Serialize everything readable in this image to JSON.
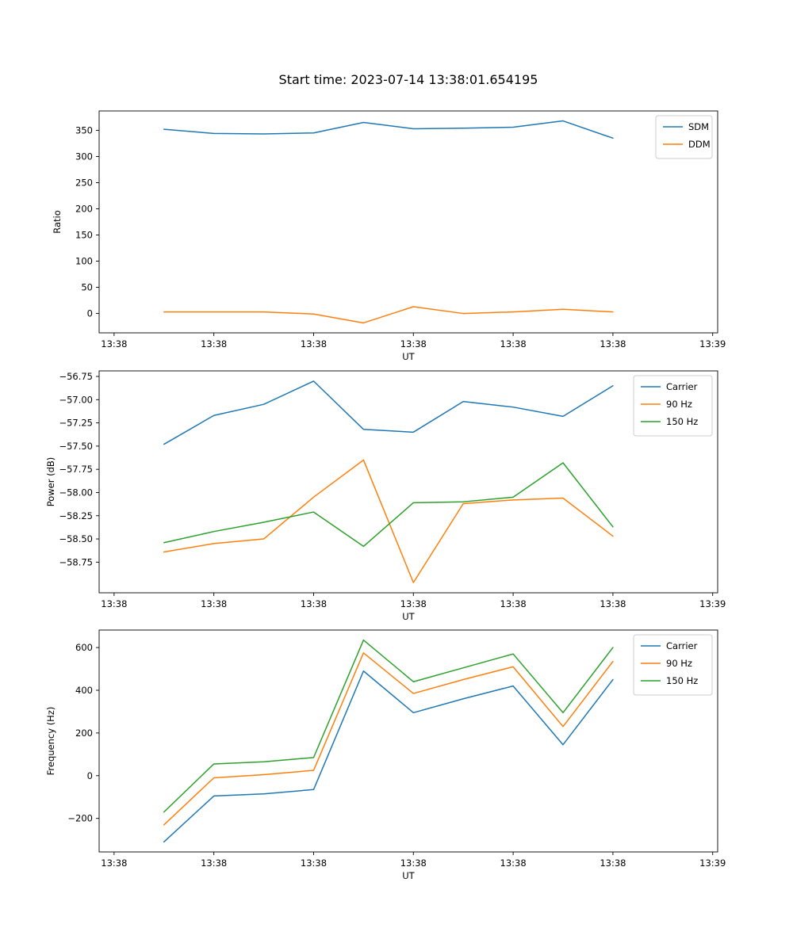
{
  "chart_data": [
    {
      "type": "line",
      "title": "Start time: 2023-07-14 13:38:01.654195",
      "xlabel": "UT",
      "ylabel": "Ratio",
      "xlim": [
        -1.5,
        60.5
      ],
      "ylim": [
        -37,
        387
      ],
      "grid": false,
      "legend_position": "upper right",
      "x": [
        5,
        10,
        15,
        20,
        25,
        30,
        35,
        40,
        45,
        50
      ],
      "x_ticks": [
        {
          "v": 0,
          "label": "13:38"
        },
        {
          "v": 10,
          "label": "13:38"
        },
        {
          "v": 20,
          "label": "13:38"
        },
        {
          "v": 30,
          "label": "13:38"
        },
        {
          "v": 40,
          "label": "13:38"
        },
        {
          "v": 50,
          "label": "13:38"
        },
        {
          "v": 60,
          "label": "13:39"
        }
      ],
      "y_ticks": [
        {
          "v": 350,
          "label": "350"
        },
        {
          "v": 300,
          "label": "300"
        },
        {
          "v": 250,
          "label": "250"
        },
        {
          "v": 200,
          "label": "200"
        },
        {
          "v": 150,
          "label": "150"
        },
        {
          "v": 100,
          "label": "100"
        },
        {
          "v": 50,
          "label": "50"
        },
        {
          "v": 0,
          "label": "0"
        }
      ],
      "series": [
        {
          "name": "SDM",
          "color": "#1f77b4",
          "values": [
            352,
            344,
            343,
            345,
            365,
            353,
            354,
            356,
            368,
            335
          ]
        },
        {
          "name": "DDM",
          "color": "#ff7f0e",
          "values": [
            3,
            3,
            3,
            -1,
            -18,
            13,
            0,
            3,
            8,
            3
          ]
        }
      ]
    },
    {
      "type": "line",
      "title": "",
      "xlabel": "UT",
      "ylabel": "Power (dB)",
      "xlim": [
        -1.5,
        60.5
      ],
      "ylim": [
        -59.08,
        -56.69
      ],
      "grid": false,
      "legend_position": "upper right",
      "x": [
        5,
        10,
        15,
        20,
        25,
        30,
        35,
        40,
        45,
        50
      ],
      "x_ticks": [
        {
          "v": 0,
          "label": "13:38"
        },
        {
          "v": 10,
          "label": "13:38"
        },
        {
          "v": 20,
          "label": "13:38"
        },
        {
          "v": 30,
          "label": "13:38"
        },
        {
          "v": 40,
          "label": "13:38"
        },
        {
          "v": 50,
          "label": "13:38"
        },
        {
          "v": 60,
          "label": "13:39"
        }
      ],
      "y_ticks": [
        {
          "v": -56.75,
          "label": "−56.75"
        },
        {
          "v": -57.0,
          "label": "−57.00"
        },
        {
          "v": -57.25,
          "label": "−57.25"
        },
        {
          "v": -57.5,
          "label": "−57.50"
        },
        {
          "v": -57.75,
          "label": "−57.75"
        },
        {
          "v": -58.0,
          "label": "−58.00"
        },
        {
          "v": -58.25,
          "label": "−58.25"
        },
        {
          "v": -58.5,
          "label": "−58.50"
        },
        {
          "v": -58.75,
          "label": "−58.75"
        }
      ],
      "series": [
        {
          "name": "Carrier",
          "color": "#1f77b4",
          "values": [
            -57.48,
            -57.17,
            -57.05,
            -56.8,
            -57.32,
            -57.35,
            -57.02,
            -57.08,
            -57.18,
            -56.85
          ]
        },
        {
          "name": "90 Hz",
          "color": "#ff7f0e",
          "values": [
            -58.64,
            -58.55,
            -58.5,
            -58.05,
            -57.65,
            -58.97,
            -58.12,
            -58.08,
            -58.06,
            -58.47
          ]
        },
        {
          "name": "150 Hz",
          "color": "#2ca02c",
          "values": [
            -58.54,
            -58.42,
            -58.32,
            -58.21,
            -58.58,
            -58.11,
            -58.1,
            -58.05,
            -57.68,
            -58.37
          ]
        }
      ]
    },
    {
      "type": "line",
      "title": "",
      "xlabel": "UT",
      "ylabel": "Frequency (Hz)",
      "xlim": [
        -1.5,
        60.5
      ],
      "ylim": [
        -357,
        682
      ],
      "grid": false,
      "legend_position": "upper right",
      "x": [
        5,
        10,
        15,
        20,
        25,
        30,
        35,
        40,
        45,
        50
      ],
      "x_ticks": [
        {
          "v": 0,
          "label": "13:38"
        },
        {
          "v": 10,
          "label": "13:38"
        },
        {
          "v": 20,
          "label": "13:38"
        },
        {
          "v": 30,
          "label": "13:38"
        },
        {
          "v": 40,
          "label": "13:38"
        },
        {
          "v": 50,
          "label": "13:38"
        },
        {
          "v": 60,
          "label": "13:39"
        }
      ],
      "y_ticks": [
        {
          "v": 600,
          "label": "600"
        },
        {
          "v": 400,
          "label": "400"
        },
        {
          "v": 200,
          "label": "200"
        },
        {
          "v": 0,
          "label": "0"
        },
        {
          "v": -200,
          "label": "−200"
        }
      ],
      "series": [
        {
          "name": "Carrier",
          "color": "#1f77b4",
          "values": [
            -310,
            -95,
            -85,
            -65,
            490,
            295,
            360,
            420,
            145,
            450
          ]
        },
        {
          "name": "90 Hz",
          "color": "#ff7f0e",
          "values": [
            -230,
            -10,
            5,
            25,
            575,
            385,
            450,
            510,
            230,
            535
          ]
        },
        {
          "name": "150 Hz",
          "color": "#2ca02c",
          "values": [
            -170,
            55,
            65,
            85,
            635,
            440,
            505,
            570,
            295,
            600
          ]
        }
      ]
    }
  ]
}
